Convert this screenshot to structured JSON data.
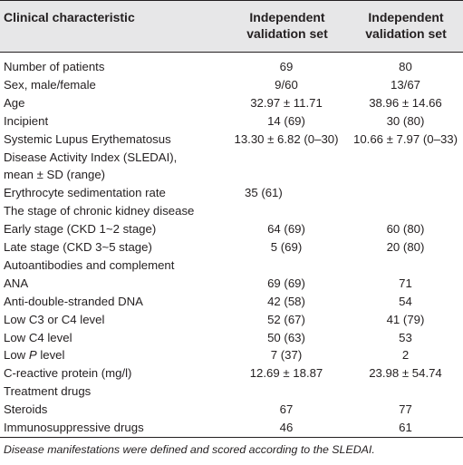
{
  "header": {
    "col1": "Clinical characteristic",
    "col2_line1": "Independent",
    "col2_line2": "validation set",
    "col3_line1": "Independent",
    "col3_line2": "validation set"
  },
  "rows": [
    {
      "label": "Number of patients",
      "v1": "69",
      "v2": "80"
    },
    {
      "label": "Sex, male/female",
      "v1": "9/60",
      "v2": "13/67"
    },
    {
      "label": "Age",
      "v1": "32.97 ± 11.71",
      "v2": "38.96 ± 14.66"
    },
    {
      "label": "Incipient",
      "v1": "14 (69)",
      "v2": "30 (80)"
    },
    {
      "label": "Systemic Lupus Erythematosus",
      "v1": "13.30 ± 6.82 (0–30)",
      "v2": "10.66 ± 7.97 (0–33)"
    },
    {
      "label": "Disease Activity Index (SLEDAI),",
      "v1": "",
      "v2": ""
    },
    {
      "label": "mean ± SD (range)",
      "v1": "",
      "v2": ""
    },
    {
      "label": "Erythrocyte sedimentation rate",
      "v1": "35 (61)",
      "v2": ""
    },
    {
      "label": "The stage of chronic kidney disease",
      "v1": "",
      "v2": ""
    },
    {
      "label": "Early stage (CKD 1~2 stage)",
      "v1": "64 (69)",
      "v2": "60 (80)"
    },
    {
      "label": "Late stage (CKD 3~5 stage)",
      "v1": "5 (69)",
      "v2": "20 (80)"
    },
    {
      "label": "Autoantibodies and complement",
      "v1": "",
      "v2": ""
    },
    {
      "label": "ANA",
      "v1": "69 (69)",
      "v2": "71"
    },
    {
      "label": "Anti-double-stranded DNA",
      "v1": "42 (58)",
      "v2": "54"
    },
    {
      "label": "Low C3 or C4 level",
      "v1": "52 (67)",
      "v2": "41 (79)"
    },
    {
      "label": "Low C4 level",
      "v1": "50 (63)",
      "v2": "53"
    },
    {
      "label": "Low P level",
      "v1": "7 (37)",
      "v2": "2"
    },
    {
      "label": "C-reactive protein (mg/l)",
      "v1": "12.69 ± 18.87",
      "v2": "23.98 ± 54.74"
    },
    {
      "label": "Treatment drugs",
      "v1": "",
      "v2": ""
    },
    {
      "label": "Steroids",
      "v1": "67",
      "v2": "77"
    },
    {
      "label": "Immunosuppressive drugs",
      "v1": "46",
      "v2": "61"
    }
  ],
  "footnote": "Disease manifestations were defined and scored according to the SLEDAI."
}
